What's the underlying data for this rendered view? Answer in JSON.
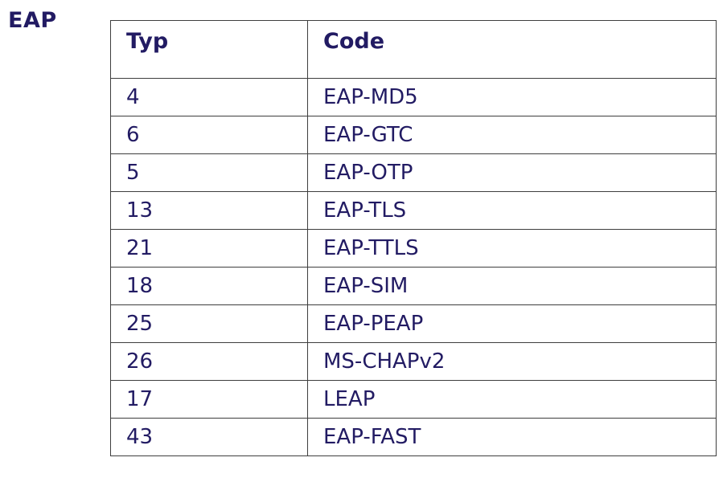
{
  "page": {
    "label": "EAP"
  },
  "table": {
    "headers": [
      "Typ",
      "Code"
    ],
    "rows": [
      [
        "4",
        "EAP-MD5"
      ],
      [
        "6",
        "EAP-GTC"
      ],
      [
        "5",
        "EAP-OTP"
      ],
      [
        "13",
        "EAP-TLS"
      ],
      [
        "21",
        "EAP-TTLS"
      ],
      [
        "18",
        "EAP-SIM"
      ],
      [
        "25",
        "EAP-PEAP"
      ],
      [
        "26",
        "MS-CHAPv2"
      ],
      [
        "17",
        "LEAP"
      ],
      [
        "43",
        "EAP-FAST"
      ]
    ]
  },
  "colors": {
    "text": "#221b63",
    "border": "#3e3e3e",
    "background": "#ffffff"
  }
}
